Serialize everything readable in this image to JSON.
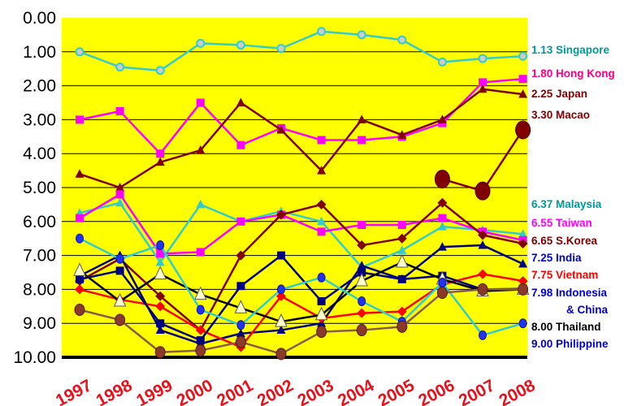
{
  "chart_data": {
    "type": "line",
    "title": "",
    "xlabel": "",
    "ylabel": "",
    "ylim": [
      10,
      0
    ],
    "y_reversed": true,
    "yticks": [
      "0.00",
      "1.00",
      "2.00",
      "3.00",
      "4.00",
      "5.00",
      "6.00",
      "7.00",
      "8.00",
      "9.00",
      "10.00"
    ],
    "categories": [
      "1997",
      "1998",
      "1999",
      "2000",
      "2001",
      "2002",
      "2003",
      "2004",
      "2005",
      "2006",
      "2007",
      "2008"
    ],
    "background_color": "#ffff00",
    "grid": true,
    "legend": "right",
    "series": [
      {
        "name": "Singapore",
        "label": "1.13 Singapore",
        "color": "#33cccc",
        "label_color": "#009999",
        "marker": "circle",
        "values": [
          1.0,
          1.45,
          1.55,
          0.75,
          0.8,
          0.9,
          0.4,
          0.5,
          0.65,
          1.3,
          1.2,
          1.13
        ]
      },
      {
        "name": "Hong Kong",
        "label": "1.80 Hong Kong",
        "color": "#ff00ff",
        "label_color": "#ff0080",
        "marker": "square",
        "values": [
          3.0,
          2.75,
          4.0,
          2.5,
          3.75,
          3.25,
          3.6,
          3.6,
          3.5,
          3.1,
          1.9,
          1.8
        ]
      },
      {
        "name": "Japan",
        "label": "2.25 Japan",
        "color": "#800000",
        "label_color": "#800000",
        "marker": "triangle",
        "values": [
          4.6,
          5.0,
          4.25,
          3.9,
          2.5,
          3.3,
          4.5,
          3.0,
          3.45,
          3.0,
          2.1,
          2.25
        ]
      },
      {
        "name": "Macao",
        "label": "3.30 Macao",
        "color": "#800000",
        "label_color": "#800000",
        "marker": "bigcircle",
        "values": [
          null,
          null,
          null,
          null,
          null,
          null,
          null,
          null,
          null,
          4.75,
          5.1,
          3.3
        ]
      },
      {
        "name": "Malaysia",
        "label": "6.37 Malaysia",
        "color": "#33cccc",
        "label_color": "#009999",
        "marker": "triangle",
        "values": [
          5.75,
          5.45,
          7.2,
          5.5,
          6.0,
          5.7,
          6.0,
          7.35,
          6.85,
          6.15,
          6.25,
          6.37
        ]
      },
      {
        "name": "Taiwan",
        "label": "6.55 Taiwan",
        "color": "#ff00ff",
        "label_color": "#ff00ff",
        "marker": "square",
        "values": [
          5.9,
          5.2,
          6.95,
          6.9,
          6.0,
          5.8,
          6.3,
          6.1,
          6.1,
          5.9,
          6.3,
          6.55
        ]
      },
      {
        "name": "S.Korea",
        "label": "6.65 S.Korea",
        "color": "#800000",
        "label_color": "#800000",
        "marker": "diamond",
        "values": [
          7.75,
          7.1,
          8.2,
          9.2,
          7.0,
          5.8,
          5.5,
          6.7,
          6.5,
          5.45,
          6.4,
          6.65
        ]
      },
      {
        "name": "India",
        "label": "7.25 India",
        "color": "#000080",
        "label_color": "#0000cc",
        "marker": "triangle",
        "values": [
          7.6,
          7.0,
          9.2,
          9.6,
          9.3,
          9.2,
          9.0,
          7.3,
          7.7,
          6.75,
          6.7,
          7.25
        ]
      },
      {
        "name": "Vietnam",
        "label": "7.75 Vietnam",
        "color": "#ff0000",
        "label_color": "#ff0000",
        "marker": "diamond",
        "values": [
          8.0,
          8.3,
          8.5,
          9.2,
          9.7,
          8.2,
          8.85,
          8.7,
          8.65,
          7.85,
          7.55,
          7.75
        ]
      },
      {
        "name": "Indonesia & China",
        "label": "7.98 Indonesia",
        "label2": "& China",
        "color": "#000080",
        "label_color": "#0000cc",
        "marker": "square",
        "values": [
          7.7,
          7.45,
          9.0,
          9.5,
          7.9,
          7.0,
          8.35,
          7.5,
          7.7,
          7.6,
          8.0,
          7.98
        ]
      },
      {
        "name": "Thailand",
        "label": "8.00 Thailand",
        "color": "#000000",
        "label_color": "#000000",
        "marker": "triangle_cream",
        "values": [
          7.45,
          8.35,
          7.55,
          8.15,
          8.55,
          8.95,
          8.75,
          7.75,
          7.2,
          7.7,
          8.05,
          8.0
        ]
      },
      {
        "name": "Philippine",
        "label": "9.00 Philippine",
        "color": "#33cccc",
        "label_color": "#0000cc",
        "marker": "circle_blue",
        "values": [
          6.5,
          7.1,
          6.7,
          8.6,
          9.05,
          8.0,
          7.65,
          8.35,
          8.95,
          7.8,
          9.35,
          9.0
        ]
      },
      {
        "name": "Brown series",
        "color": "#804040",
        "label_color": "#800000",
        "marker": "circle_brown",
        "values": [
          8.6,
          8.9,
          9.85,
          9.8,
          9.55,
          9.9,
          9.25,
          9.2,
          9.1,
          8.1,
          8.0,
          8.0
        ]
      }
    ]
  }
}
